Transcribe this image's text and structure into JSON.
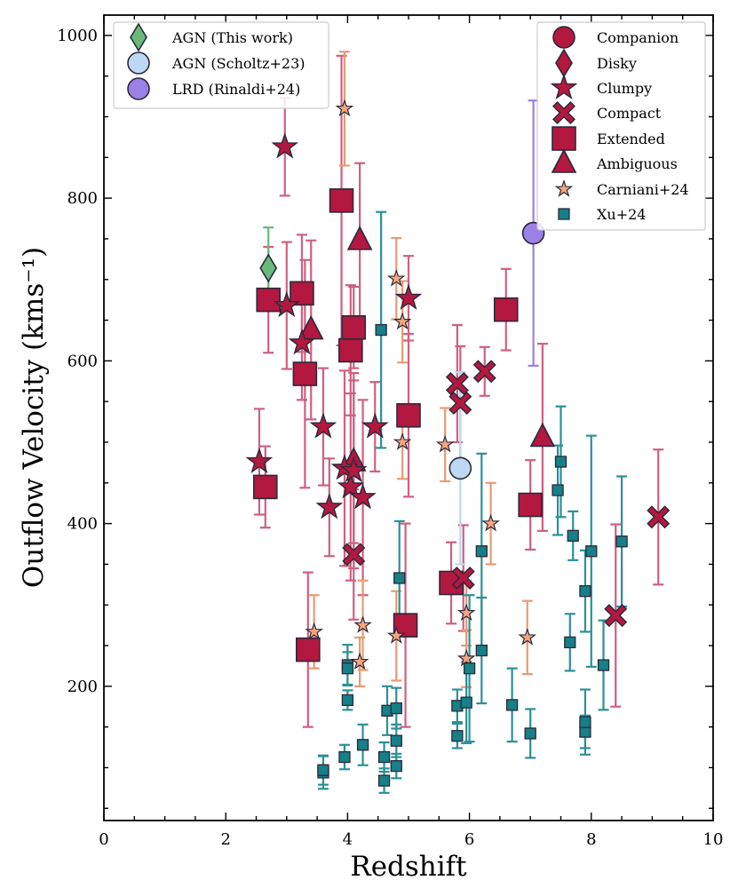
{
  "chart_data": {
    "type": "scatter",
    "xlabel": "Redshift",
    "ylabel": "Outflow Velocity (kms⁻¹)",
    "xlim": [
      0,
      10
    ],
    "ylim": [
      35,
      1025
    ],
    "x_ticks": [
      0,
      2,
      4,
      6,
      8,
      10
    ],
    "y_ticks": [
      200,
      400,
      600,
      800,
      1000
    ],
    "grid": false,
    "legend_left_placement": "top-left",
    "legend_right_placement": "top-right",
    "colors": {
      "agn_this_work": "#6ab97a",
      "agn_scholtz": "#bcd8f3",
      "lrd_rinaldi": "#9b80e6",
      "morphology": "#b31840",
      "morphology_err": "#cf5f80",
      "carniani": "#f4a57c",
      "carniani_err": "#e89a72",
      "xu": "#167f88",
      "xu_err": "#2b9097",
      "edge": "#2a2a3a"
    },
    "legend_left": [
      {
        "label": "AGN (This work)",
        "marker": "diamond",
        "color": "#6ab97a"
      },
      {
        "label": "AGN (Scholtz+23)",
        "marker": "circle",
        "color": "#bcd8f3"
      },
      {
        "label": "LRD (Rinaldi+24)",
        "marker": "circle",
        "color": "#9b80e6"
      }
    ],
    "legend_right": [
      {
        "label": "Companion",
        "marker": "circle",
        "color": "#b31840"
      },
      {
        "label": "Disky",
        "marker": "diamond",
        "color": "#b31840"
      },
      {
        "label": "Clumpy",
        "marker": "star",
        "color": "#b31840"
      },
      {
        "label": "Compact",
        "marker": "x",
        "color": "#b31840"
      },
      {
        "label": "Extended",
        "marker": "square",
        "color": "#b31840"
      },
      {
        "label": "Ambiguous",
        "marker": "triangle",
        "color": "#b31840"
      },
      {
        "label": "Carniani+24",
        "marker": "smallstar",
        "color": "#f4a57c"
      },
      {
        "label": "Xu+24",
        "marker": "smallsquare",
        "color": "#167f88"
      }
    ],
    "series": [
      {
        "name": "AGN (This work)",
        "marker": "diamond",
        "points": [
          [
            2.7,
            714,
            50
          ]
        ]
      },
      {
        "name": "AGN (Scholtz+23)",
        "marker": "circle",
        "points": [
          [
            5.85,
            468,
            118
          ]
        ]
      },
      {
        "name": "LRD (Rinaldi+24)",
        "marker": "circle",
        "points": [
          [
            7.05,
            757,
            163
          ]
        ]
      },
      {
        "name": "Clumpy",
        "marker": "star",
        "points": [
          [
            2.55,
            476,
            65
          ],
          [
            2.97,
            863,
            60
          ],
          [
            3.0,
            668,
            78
          ],
          [
            3.25,
            622,
            70
          ],
          [
            3.6,
            519,
            72
          ],
          [
            3.7,
            420,
            60
          ],
          [
            3.95,
            468,
            120
          ],
          [
            4.05,
            445,
            115
          ],
          [
            4.1,
            465,
            120
          ],
          [
            4.25,
            432,
            120
          ],
          [
            4.45,
            519,
            55
          ],
          [
            5.0,
            677,
            52
          ]
        ]
      },
      {
        "name": "Compact",
        "marker": "x",
        "points": [
          [
            4.1,
            362,
            80
          ],
          [
            5.8,
            572,
            72
          ],
          [
            5.85,
            548,
            70
          ],
          [
            5.9,
            333,
            65
          ],
          [
            6.25,
            587,
            30
          ],
          [
            8.4,
            287,
            112
          ],
          [
            9.1,
            408,
            83
          ]
        ]
      },
      {
        "name": "Extended",
        "marker": "square",
        "points": [
          [
            2.65,
            445,
            50
          ],
          [
            2.7,
            675,
            65
          ],
          [
            3.25,
            683,
            72
          ],
          [
            3.3,
            584,
            140
          ],
          [
            3.35,
            245,
            95
          ],
          [
            3.9,
            797,
            178
          ],
          [
            4.05,
            613,
            80
          ],
          [
            4.1,
            641,
            50
          ],
          [
            4.95,
            275,
            125
          ],
          [
            5.0,
            533,
            100
          ],
          [
            5.7,
            327,
            50
          ],
          [
            6.6,
            663,
            50
          ],
          [
            7.0,
            423,
            55
          ]
        ]
      },
      {
        "name": "Ambiguous",
        "marker": "triangle",
        "points": [
          [
            3.4,
            638,
            110
          ],
          [
            4.1,
            476,
            100
          ],
          [
            4.2,
            748,
            95
          ],
          [
            7.2,
            506,
            115
          ]
        ]
      },
      {
        "name": "Carniani+24",
        "marker": "smallstar",
        "points": [
          [
            3.45,
            267,
            45
          ],
          [
            3.95,
            910,
            70
          ],
          [
            4.2,
            230,
            30
          ],
          [
            4.25,
            275,
            55
          ],
          [
            4.8,
            701,
            50
          ],
          [
            4.8,
            262,
            55
          ],
          [
            4.9,
            648,
            50
          ],
          [
            4.9,
            500,
            45
          ],
          [
            5.6,
            497,
            45
          ],
          [
            5.95,
            290,
            40
          ],
          [
            5.95,
            234,
            35
          ],
          [
            6.35,
            400,
            50
          ],
          [
            6.95,
            260,
            45
          ]
        ]
      },
      {
        "name": "Xu+24",
        "marker": "smallsquare",
        "points": [
          [
            3.6,
            94,
            20
          ],
          [
            3.6,
            97,
            18
          ],
          [
            3.95,
            113,
            15
          ],
          [
            4.0,
            226,
            25
          ],
          [
            4.0,
            222,
            20
          ],
          [
            4.0,
            183,
            12
          ],
          [
            4.25,
            128,
            25
          ],
          [
            4.6,
            84,
            15
          ],
          [
            4.6,
            113,
            18
          ],
          [
            4.65,
            170,
            30
          ],
          [
            4.8,
            102,
            15
          ],
          [
            4.8,
            133,
            20
          ],
          [
            4.8,
            173,
            25
          ],
          [
            4.85,
            333,
            70
          ],
          [
            4.55,
            638,
            145
          ],
          [
            5.8,
            139,
            15
          ],
          [
            5.8,
            176,
            20
          ],
          [
            5.95,
            180,
            50
          ],
          [
            6.0,
            222,
            90
          ],
          [
            6.2,
            244,
            65
          ],
          [
            6.2,
            366,
            120
          ],
          [
            6.7,
            177,
            45
          ],
          [
            7.0,
            142,
            30
          ],
          [
            7.45,
            441,
            55
          ],
          [
            7.5,
            476,
            68
          ],
          [
            7.65,
            254,
            35
          ],
          [
            7.7,
            385,
            30
          ],
          [
            7.9,
            317,
            50
          ],
          [
            8.0,
            366,
            142
          ],
          [
            7.9,
            144,
            20
          ],
          [
            7.9,
            156,
            40
          ],
          [
            8.2,
            226,
            55
          ],
          [
            8.5,
            378,
            80
          ]
        ]
      }
    ]
  }
}
